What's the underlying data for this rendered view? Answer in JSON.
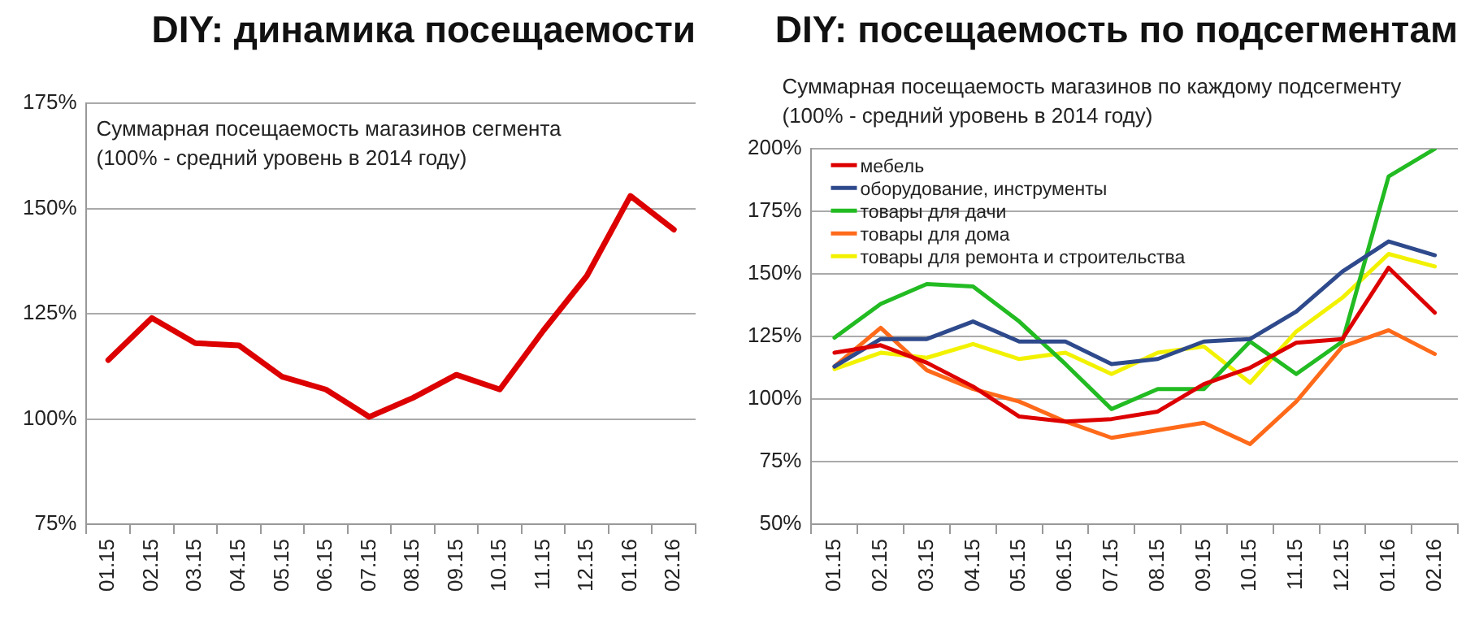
{
  "chart_data": [
    {
      "type": "line",
      "title": "DIY: динамика посещаемости",
      "annotations": [
        "Суммарная посещаемость магазинов сегмента",
        "(100% - средний уровень в 2014 году)"
      ],
      "categories": [
        "01.15",
        "02.15",
        "03.15",
        "04.15",
        "05.15",
        "06.15",
        "07.15",
        "08.15",
        "09.15",
        "10.15",
        "11.15",
        "12.15",
        "01.16",
        "02.16"
      ],
      "values": [
        114,
        124,
        118,
        117.5,
        110,
        107,
        100.5,
        105,
        110.5,
        107,
        121,
        134,
        153,
        145
      ],
      "color": "#dd0000",
      "ylim": [
        75,
        175
      ],
      "yticks": [
        {
          "value": 75,
          "label": "75%"
        },
        {
          "value": 100,
          "label": "100%"
        },
        {
          "value": 125,
          "label": "125%"
        },
        {
          "value": 150,
          "label": "150%"
        },
        {
          "value": 175,
          "label": "175%"
        }
      ],
      "grid": "y",
      "legend": false,
      "marker": "none",
      "line_style": "solid"
    },
    {
      "type": "line",
      "title": "DIY: посещаемость по подсегментам",
      "annotations": [
        "Суммарная посещаемость магазинов по каждому подсегменту",
        "(100% - средний уровень в 2014 году)"
      ],
      "categories": [
        "01.15",
        "02.15",
        "03.15",
        "04.15",
        "05.15",
        "06.15",
        "07.15",
        "08.15",
        "09.15",
        "10.15",
        "11.15",
        "12.15",
        "01.16",
        "02.16"
      ],
      "series": [
        {
          "name": "мебель",
          "color": "#dd0000",
          "values": [
            118.5,
            121.5,
            114.5,
            105,
            93,
            91,
            92,
            95,
            106,
            112.5,
            122.5,
            124,
            152.5,
            134.5
          ]
        },
        {
          "name": "оборудование, инструменты",
          "color": "#2e4a8c",
          "values": [
            113,
            124,
            124,
            131,
            123,
            123,
            114,
            116,
            123,
            124,
            135,
            151,
            163,
            157.5
          ]
        },
        {
          "name": "товары для дачи",
          "color": "#22bb22",
          "values": [
            124.5,
            138,
            146,
            145,
            131,
            114,
            96,
            104,
            104,
            123,
            110,
            123,
            189,
            200
          ]
        },
        {
          "name": "товары для дома",
          "color": "#ff6a1a",
          "values": [
            113,
            128.5,
            111.5,
            104,
            99,
            91,
            84.5,
            87.5,
            90.5,
            82,
            99,
            121,
            127.5,
            118
          ]
        },
        {
          "name": "товары для ремонта и строительства",
          "color": "#f2f200",
          "values": [
            112,
            118.5,
            116.5,
            122,
            116,
            118.5,
            110,
            118.5,
            121,
            106.5,
            127,
            140.5,
            158,
            153
          ]
        }
      ],
      "ylim": [
        50,
        200
      ],
      "yticks": [
        {
          "value": 50,
          "label": "50%"
        },
        {
          "value": 75,
          "label": "75%"
        },
        {
          "value": 100,
          "label": "100%"
        },
        {
          "value": 125,
          "label": "125%"
        },
        {
          "value": 150,
          "label": "150%"
        },
        {
          "value": 175,
          "label": "175%"
        },
        {
          "value": 200,
          "label": "200%"
        }
      ],
      "grid": "y",
      "legend": "top left",
      "marker": "none",
      "line_style": "solid"
    }
  ]
}
